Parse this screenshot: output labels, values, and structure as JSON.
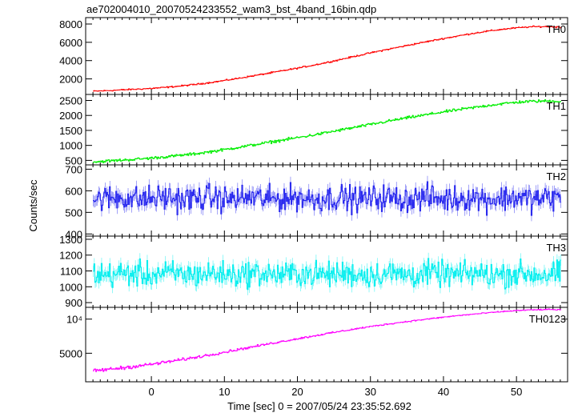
{
  "title": "ae702004010_20070524233552_wam3_bst_4band_16bin.qdp",
  "ylabel": "Counts/sec",
  "xlabel": "Time [sec] 0 = 2007/05/24 23:35:52.692",
  "chart_data": [
    {
      "type": "line",
      "name": "TH0",
      "color": "#ff0000",
      "xlim": [
        -9,
        57
      ],
      "ylim": [
        300,
        8700
      ],
      "yticks": [
        2000,
        4000,
        6000,
        8000
      ],
      "ytick_labels": [
        "2000",
        "4000",
        "6000",
        "8000"
      ],
      "x": [
        -8,
        -6,
        -4,
        -2,
        0,
        2,
        4,
        6,
        8,
        10,
        12,
        14,
        16,
        18,
        20,
        22,
        24,
        26,
        28,
        30,
        32,
        34,
        36,
        38,
        40,
        42,
        44,
        46,
        48,
        50,
        52,
        54,
        56
      ],
      "values": [
        650,
        720,
        800,
        880,
        960,
        1080,
        1230,
        1400,
        1600,
        1830,
        2080,
        2350,
        2620,
        2900,
        3180,
        3480,
        3800,
        4150,
        4500,
        4850,
        5180,
        5500,
        5820,
        6120,
        6420,
        6700,
        6980,
        7220,
        7420,
        7580,
        7700,
        7720,
        7650
      ],
      "noise": 60
    },
    {
      "type": "line",
      "name": "TH1",
      "color": "#00ee00",
      "xlim": [
        -9,
        57
      ],
      "ylim": [
        350,
        2700
      ],
      "yticks": [
        500,
        1000,
        1500,
        2000,
        2500
      ],
      "ytick_labels": [
        "500",
        "1000",
        "1500",
        "2000",
        "2500"
      ],
      "x": [
        -8,
        -6,
        -4,
        -2,
        0,
        2,
        4,
        6,
        8,
        10,
        12,
        14,
        16,
        18,
        20,
        22,
        24,
        26,
        28,
        30,
        32,
        34,
        36,
        38,
        40,
        42,
        44,
        46,
        48,
        50,
        52,
        54,
        56
      ],
      "values": [
        450,
        480,
        510,
        540,
        580,
        620,
        670,
        720,
        790,
        860,
        940,
        1020,
        1100,
        1180,
        1260,
        1340,
        1430,
        1520,
        1610,
        1700,
        1790,
        1880,
        1960,
        2040,
        2120,
        2190,
        2260,
        2330,
        2390,
        2440,
        2470,
        2480,
        2470
      ],
      "noise": 35
    },
    {
      "type": "line",
      "name": "TH2",
      "color": "#2222ee",
      "xlim": [
        -9,
        57
      ],
      "ylim": [
        390,
        720
      ],
      "yticks": [
        400,
        500,
        600,
        700
      ],
      "ytick_labels": [
        "400",
        "500",
        "600",
        "700"
      ],
      "x": [
        -8,
        -6,
        -4,
        -2,
        0,
        2,
        4,
        6,
        8,
        10,
        12,
        14,
        16,
        18,
        20,
        22,
        24,
        26,
        28,
        30,
        32,
        34,
        36,
        38,
        40,
        42,
        44,
        46,
        48,
        50,
        52,
        54,
        56
      ],
      "values": [
        560,
        565,
        570,
        560,
        565,
        570,
        560,
        565,
        570,
        560,
        565,
        570,
        560,
        565,
        570,
        560,
        565,
        570,
        560,
        565,
        570,
        560,
        565,
        570,
        560,
        565,
        570,
        560,
        565,
        570,
        560,
        565,
        570
      ],
      "noise": 45
    },
    {
      "type": "line",
      "name": "TH3",
      "color": "#00eeee",
      "xlim": [
        -9,
        57
      ],
      "ylim": [
        870,
        1320
      ],
      "yticks": [
        900,
        1000,
        1100,
        1200,
        1300
      ],
      "ytick_labels": [
        "900",
        "1000",
        "1100",
        "1200",
        "1300"
      ],
      "x": [
        -8,
        -6,
        -4,
        -2,
        0,
        2,
        4,
        6,
        8,
        10,
        12,
        14,
        16,
        18,
        20,
        22,
        24,
        26,
        28,
        30,
        32,
        34,
        36,
        38,
        40,
        42,
        44,
        46,
        48,
        50,
        52,
        54,
        56
      ],
      "values": [
        1080,
        1075,
        1085,
        1080,
        1075,
        1085,
        1080,
        1075,
        1085,
        1080,
        1075,
        1085,
        1080,
        1075,
        1085,
        1080,
        1075,
        1085,
        1080,
        1075,
        1085,
        1080,
        1075,
        1085,
        1080,
        1075,
        1085,
        1080,
        1075,
        1085,
        1080,
        1075,
        1085
      ],
      "noise": 60
    },
    {
      "type": "line",
      "name": "TH0123",
      "color": "#ff00ff",
      "xlim": [
        -9,
        57
      ],
      "ylim": [
        2800,
        12700
      ],
      "yscale": "log",
      "yticks": [
        5000,
        10000
      ],
      "ytick_labels": [
        "5000",
        "10⁴"
      ],
      "x": [
        -8,
        -6,
        -4,
        -2,
        0,
        2,
        4,
        6,
        8,
        10,
        12,
        14,
        16,
        18,
        20,
        22,
        24,
        26,
        28,
        30,
        32,
        34,
        36,
        38,
        40,
        42,
        44,
        46,
        48,
        50,
        52,
        54,
        56
      ],
      "values": [
        3500,
        3600,
        3720,
        3850,
        4000,
        4180,
        4380,
        4600,
        4850,
        5120,
        5420,
        5720,
        6050,
        6380,
        6720,
        7080,
        7450,
        7830,
        8220,
        8600,
        8980,
        9350,
        9700,
        10050,
        10400,
        10750,
        11050,
        11350,
        11650,
        11900,
        12050,
        12150,
        12100
      ],
      "noise": 100
    }
  ],
  "xticks": [
    0,
    10,
    20,
    30,
    40,
    50
  ],
  "xtick_labels": [
    "0",
    "10",
    "20",
    "30",
    "40",
    "50"
  ]
}
